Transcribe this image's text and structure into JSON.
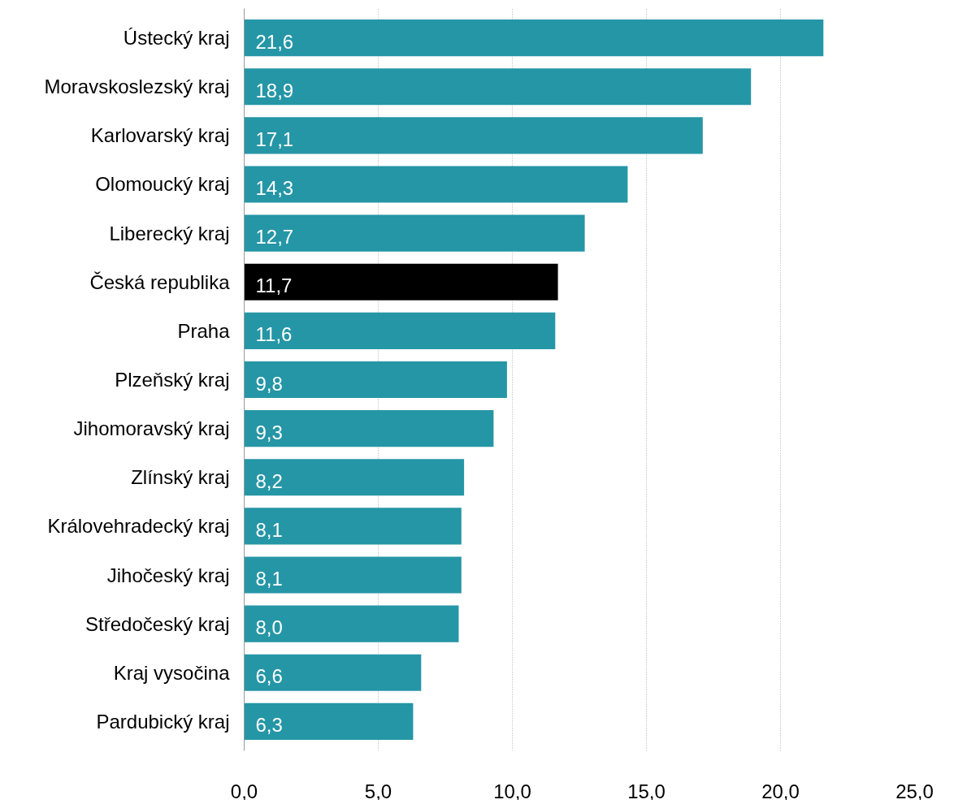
{
  "chart_data": {
    "type": "bar",
    "orientation": "horizontal",
    "categories": [
      "Ústecký kraj",
      "Moravskoslezský kraj",
      "Karlovarský kraj",
      "Olomoucký kraj",
      "Liberecký kraj",
      "Česká republika",
      "Praha",
      "Plzeňský kraj",
      "Jihomoravský kraj",
      "Zlínský kraj",
      "Královehradecký kraj",
      "Jihočeský kraj",
      "Středočeský kraj",
      "Kraj vysočina",
      "Pardubický kraj"
    ],
    "values": [
      21.6,
      18.9,
      17.1,
      14.3,
      12.7,
      11.7,
      11.6,
      9.8,
      9.3,
      8.2,
      8.1,
      8.1,
      8.0,
      6.6,
      6.3
    ],
    "colors": [
      "#2596a6",
      "#2596a6",
      "#2596a6",
      "#2596a6",
      "#2596a6",
      "#000000",
      "#2596a6",
      "#2596a6",
      "#2596a6",
      "#2596a6",
      "#2596a6",
      "#2596a6",
      "#2596a6",
      "#2596a6",
      "#2596a6"
    ],
    "value_labels": [
      "21,6",
      "18,9",
      "17,1",
      "14,3",
      "12,7",
      "11,7",
      "11,6",
      "9,8",
      "9,3",
      "8,2",
      "8,1",
      "8,1",
      "8,0",
      "6,6",
      "6,3"
    ],
    "xlim": [
      0,
      25
    ],
    "xticks": [
      {
        "value": 0,
        "label": "0,0"
      },
      {
        "value": 5,
        "label": "5,0"
      },
      {
        "value": 10,
        "label": "10,0"
      },
      {
        "value": 15,
        "label": "15,0"
      },
      {
        "value": 20,
        "label": "20,0"
      },
      {
        "value": 25,
        "label": "25,0"
      }
    ],
    "grid": "x"
  }
}
